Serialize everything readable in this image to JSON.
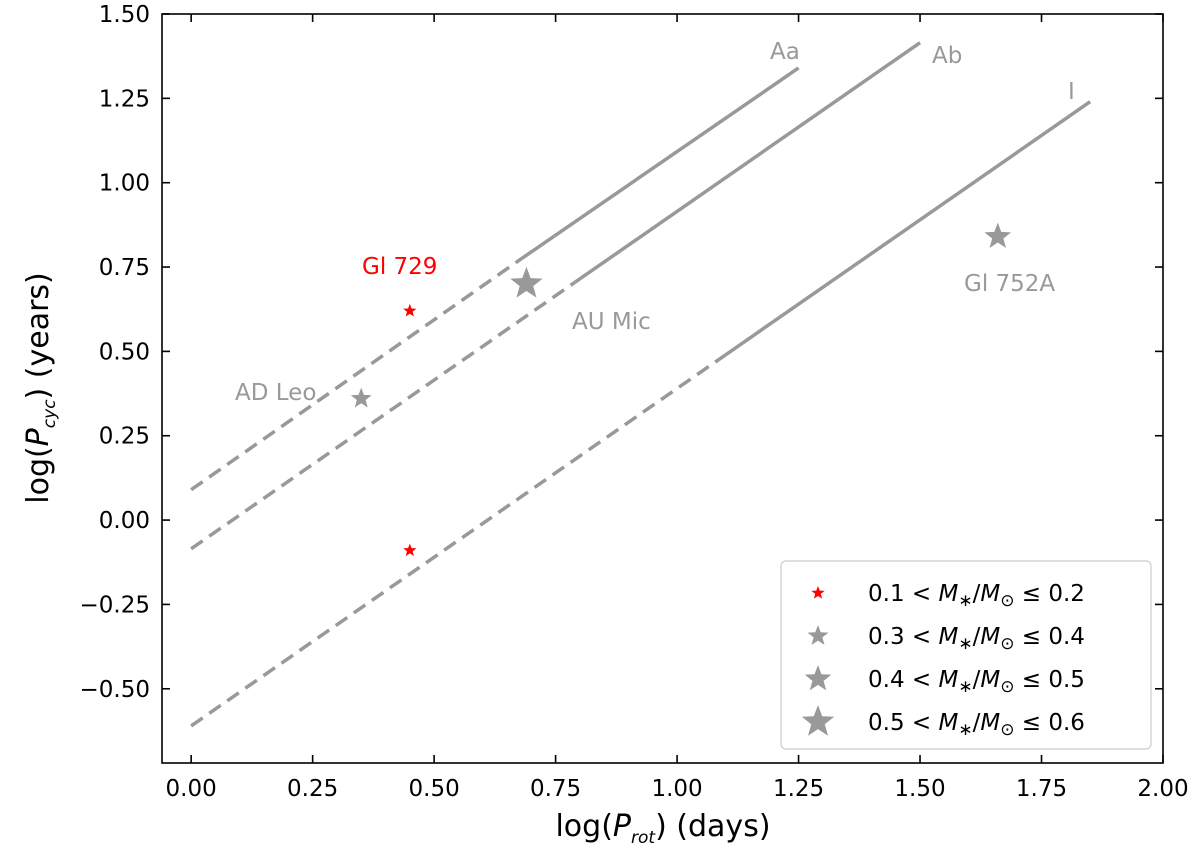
{
  "chart_data": {
    "type": "scatter",
    "xlabel": {
      "pre": "log(",
      "var": "P",
      "sub": "rot",
      "post": ") (days)"
    },
    "ylabel": {
      "pre": "log(",
      "var": "P",
      "sub": "cyc",
      "post": ") (years)"
    },
    "xlim": [
      -0.06,
      2.0
    ],
    "ylim": [
      -0.72,
      1.5
    ],
    "xticks": [
      0.0,
      0.25,
      0.5,
      0.75,
      1.0,
      1.25,
      1.5,
      1.75,
      2.0
    ],
    "xtick_labels": [
      "0.00",
      "0.25",
      "0.50",
      "0.75",
      "1.00",
      "1.25",
      "1.50",
      "1.75",
      "2.00"
    ],
    "yticks": [
      -0.5,
      -0.25,
      0.0,
      0.25,
      0.5,
      0.75,
      1.0,
      1.25,
      1.5
    ],
    "ytick_labels": [
      "−0.50",
      "−0.25",
      "0.00",
      "0.25",
      "0.50",
      "0.75",
      "1.00",
      "1.25",
      "1.50"
    ],
    "grid": false,
    "lines": [
      {
        "name": "Aa",
        "label": "Aa",
        "color": "#999999",
        "dashed": {
          "x": [
            0.0,
            0.68
          ],
          "y": [
            0.09,
            0.775
          ]
        },
        "solid": {
          "x": [
            0.68,
            1.25
          ],
          "y": [
            0.775,
            1.34
          ]
        }
      },
      {
        "name": "Ab",
        "label": "Ab",
        "color": "#999999",
        "dashed": {
          "x": [
            0.0,
            0.79
          ],
          "y": [
            -0.085,
            0.705
          ]
        },
        "solid": {
          "x": [
            0.79,
            1.5
          ],
          "y": [
            0.705,
            1.415
          ]
        }
      },
      {
        "name": "I",
        "label": "I",
        "color": "#999999",
        "dashed": {
          "x": [
            0.0,
            1.1
          ],
          "y": [
            -0.61,
            0.49
          ]
        },
        "solid": {
          "x": [
            1.1,
            1.85
          ],
          "y": [
            0.49,
            1.24
          ]
        }
      }
    ],
    "series": [
      {
        "name": "Gl 729",
        "mass_bin": "0.1-0.2",
        "color": "#ff0000",
        "points": [
          {
            "x": 0.45,
            "y": 0.62
          },
          {
            "x": 0.45,
            "y": -0.09
          }
        ]
      },
      {
        "name": "AD Leo",
        "mass_bin": "0.3-0.4",
        "color": "#999999",
        "points": [
          {
            "x": 0.35,
            "y": 0.36
          }
        ]
      },
      {
        "name": "Gl 752A",
        "mass_bin": "0.4-0.5",
        "color": "#999999",
        "points": [
          {
            "x": 1.66,
            "y": 0.84
          }
        ]
      },
      {
        "name": "AU Mic",
        "mass_bin": "0.5-0.6",
        "color": "#999999",
        "points": [
          {
            "x": 0.69,
            "y": 0.7
          }
        ]
      }
    ],
    "annotations": [
      {
        "text": "Gl 729",
        "color": "#ff0000"
      },
      {
        "text": "AD Leo",
        "color": "#999999"
      },
      {
        "text": "AU Mic",
        "color": "#999999"
      },
      {
        "text": "Gl 752A",
        "color": "#999999"
      }
    ],
    "legend": {
      "placement": "lower-right",
      "entries": [
        {
          "low": "0.1",
          "high": "0.2",
          "color": "#ff0000"
        },
        {
          "low": "0.3",
          "high": "0.4",
          "color": "#999999"
        },
        {
          "low": "0.4",
          "high": "0.5",
          "color": "#999999"
        },
        {
          "low": "0.5",
          "high": "0.6",
          "color": "#999999"
        }
      ],
      "lt": " < ",
      "M": "M",
      "star_sub": "∗",
      "slash": "/",
      "sun_sub": "⊙",
      "leq": " ≤ "
    }
  }
}
